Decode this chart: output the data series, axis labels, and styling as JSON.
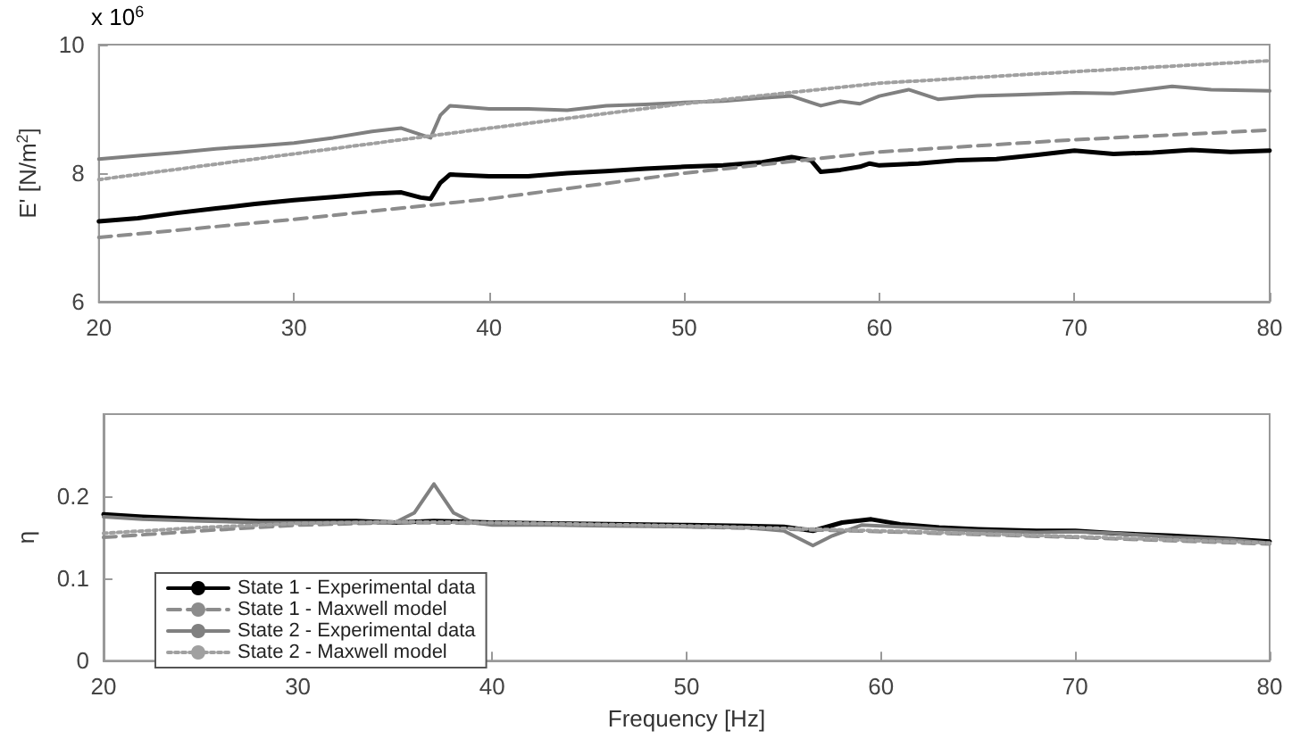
{
  "chart_data": [
    {
      "type": "line",
      "ylabel": "E' [N/m$^{2}$]",
      "annotations": [
        "x 10$^{6}$"
      ],
      "xlim": [
        20,
        80
      ],
      "xticks": [
        20,
        30,
        40,
        50,
        60,
        70,
        80
      ],
      "ylim": [
        6,
        10
      ],
      "yticks": [
        6,
        8,
        10
      ],
      "grid": false,
      "legend": false,
      "marker": "none",
      "series": [
        {
          "color": "#000000",
          "line_style": "solid",
          "x": [
            20,
            22,
            24,
            26,
            28,
            30,
            32,
            34,
            35.5,
            36.5,
            37,
            37.5,
            38,
            40,
            42,
            44,
            46,
            48,
            50,
            52,
            54,
            55.5,
            56.5,
            57,
            58,
            59,
            59.5,
            60,
            62,
            64,
            66,
            68,
            70,
            72,
            74,
            76,
            78,
            80
          ],
          "values": [
            7.25,
            7.3,
            7.38,
            7.45,
            7.52,
            7.58,
            7.63,
            7.68,
            7.7,
            7.62,
            7.6,
            7.85,
            7.98,
            7.95,
            7.95,
            8.0,
            8.03,
            8.07,
            8.1,
            8.12,
            8.17,
            8.25,
            8.2,
            8.02,
            8.05,
            8.1,
            8.15,
            8.12,
            8.15,
            8.2,
            8.22,
            8.28,
            8.35,
            8.3,
            8.32,
            8.36,
            8.33,
            8.35
          ]
        },
        {
          "color": "#8c8c8c",
          "line_style": "dashed",
          "x": [
            20,
            30,
            40,
            50,
            60,
            70,
            80
          ],
          "values": [
            7.0,
            7.28,
            7.6,
            8.0,
            8.33,
            8.52,
            8.67
          ]
        },
        {
          "color": "#808080",
          "line_style": "solid",
          "x": [
            20,
            22,
            24,
            26,
            28,
            30,
            32,
            34,
            35.5,
            36.5,
            37,
            37.5,
            38,
            40,
            42,
            44,
            46,
            48,
            50,
            52,
            54,
            55.5,
            56.5,
            57,
            58,
            59,
            60,
            61.5,
            63,
            65,
            67,
            70,
            72,
            75,
            77,
            80
          ],
          "values": [
            8.22,
            8.27,
            8.32,
            8.38,
            8.42,
            8.47,
            8.55,
            8.65,
            8.7,
            8.6,
            8.55,
            8.9,
            9.05,
            9.0,
            9.0,
            8.98,
            9.05,
            9.07,
            9.1,
            9.12,
            9.17,
            9.2,
            9.1,
            9.05,
            9.12,
            9.08,
            9.2,
            9.3,
            9.15,
            9.2,
            9.22,
            9.25,
            9.24,
            9.35,
            9.3,
            9.28
          ]
        },
        {
          "color": "#a0a0a0",
          "line_style": "dotted",
          "x": [
            20,
            30,
            40,
            50,
            60,
            70,
            80
          ],
          "values": [
            7.9,
            8.3,
            8.7,
            9.08,
            9.4,
            9.58,
            9.75
          ]
        }
      ]
    },
    {
      "type": "line",
      "xlabel": "Frequency [Hz]",
      "ylabel": "η",
      "xlim": [
        20,
        80
      ],
      "xticks": [
        20,
        30,
        40,
        50,
        60,
        70,
        80
      ],
      "ylim": [
        0,
        0.3
      ],
      "yticks": [
        0,
        0.1,
        0.2
      ],
      "grid": false,
      "legend": "bottom left",
      "marker": "none",
      "series": [
        {
          "name": "State 1 - Experimental data",
          "color": "#000000",
          "line_style": "solid",
          "x": [
            20,
            22,
            25,
            28,
            30,
            33,
            35,
            37,
            40,
            43,
            46,
            50,
            53,
            55,
            56.5,
            58,
            59.5,
            61,
            63,
            65,
            68,
            70,
            72,
            75,
            78,
            80
          ],
          "values": [
            0.178,
            0.175,
            0.172,
            0.17,
            0.17,
            0.17,
            0.168,
            0.17,
            0.168,
            0.167,
            0.166,
            0.165,
            0.164,
            0.163,
            0.158,
            0.168,
            0.172,
            0.166,
            0.162,
            0.16,
            0.158,
            0.158,
            0.155,
            0.152,
            0.148,
            0.145
          ]
        },
        {
          "name": "State 1 - Maxwell model",
          "color": "#8c8c8c",
          "line_style": "dashed",
          "x": [
            20,
            25,
            30,
            35,
            40,
            50,
            60,
            70,
            80
          ],
          "values": [
            0.15,
            0.158,
            0.165,
            0.168,
            0.167,
            0.163,
            0.157,
            0.15,
            0.142
          ]
        },
        {
          "name": "State 2 - Experimental data",
          "color": "#808080",
          "line_style": "solid",
          "x": [
            20,
            22,
            25,
            28,
            30,
            33,
            35,
            36,
            37,
            38,
            39,
            40,
            43,
            46,
            50,
            53,
            55,
            56.5,
            57.5,
            59,
            61,
            63,
            65,
            68,
            70,
            72,
            75,
            78,
            80
          ],
          "values": [
            0.175,
            0.172,
            0.17,
            0.168,
            0.168,
            0.168,
            0.168,
            0.18,
            0.215,
            0.18,
            0.168,
            0.165,
            0.165,
            0.164,
            0.163,
            0.162,
            0.158,
            0.14,
            0.152,
            0.165,
            0.163,
            0.16,
            0.158,
            0.156,
            0.157,
            0.155,
            0.15,
            0.147,
            0.143
          ]
        },
        {
          "name": "State 2 - Maxwell model",
          "color": "#a0a0a0",
          "line_style": "dotted",
          "x": [
            20,
            25,
            30,
            35,
            40,
            50,
            60,
            70,
            80
          ],
          "values": [
            0.155,
            0.162,
            0.167,
            0.169,
            0.168,
            0.164,
            0.158,
            0.151,
            0.143
          ]
        }
      ]
    }
  ]
}
